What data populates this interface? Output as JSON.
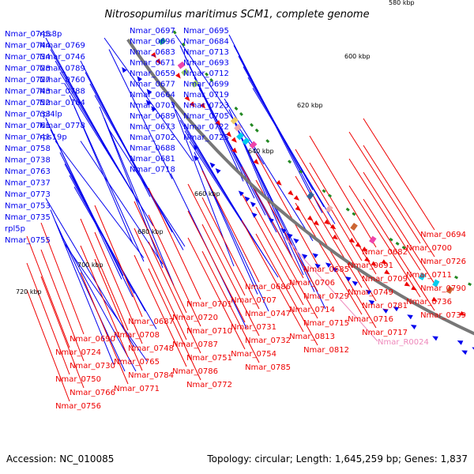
{
  "title": "Nitrosopumilus maritimus SCM1, complete genome",
  "footer": {
    "accession": "Accession: NC_010085",
    "summary": "Topology: circular; Length: 1,645,259 bp; Genes: 1,837"
  },
  "colors": {
    "forward": "#0000ee",
    "reverse": "#ee0000",
    "rna": "#ee88bb",
    "backbone": "#777777",
    "gc_skew": "#228822"
  },
  "ticks": [
    "580 kbp",
    "600 kbp",
    "620 kbp",
    "640 kbp",
    "660 kbp",
    "680 kbp",
    "700 kbp",
    "720 kbp"
  ],
  "forward_genes": [
    "Nmar_0745",
    "Nmar_0744",
    "Nmar_0734",
    "Nmar_0728",
    "Nmar_0727",
    "Nmar_0743",
    "Nmar_0752",
    "Nmar_0733",
    "Nmar_0761",
    "Nmar_0741",
    "Nmar_0758",
    "Nmar_0738",
    "Nmar_0763",
    "Nmar_0737",
    "Nmar_0773",
    "Nmar_0753",
    "Nmar_0735",
    "rpl5p",
    "Nmar_0755",
    "rps8p",
    "Nmar_0769",
    "Nmar_0746",
    "Nmar_0789",
    "Nmar_0760",
    "Nmar_0788",
    "Nmar_0764",
    "rpl4lp",
    "Nmar_0778",
    "rps19p",
    "Nmar_0697",
    "Nmar_0696",
    "Nmar_0683",
    "Nmar_0671",
    "Nmar_0659",
    "Nmar_0677",
    "Nmar_0664",
    "Nmar_0703",
    "Nmar_0689",
    "Nmar_0673",
    "Nmar_0702",
    "Nmar_0688",
    "Nmar_0681",
    "Nmar_0718",
    "Nmar_0695",
    "Nmar_0684",
    "Nmar_0713",
    "Nmar_0693",
    "Nmar_0712",
    "Nmar_0699",
    "Nmar_0719",
    "Nmar_0723",
    "Nmar_0705",
    "Nmar_0722",
    "Nmar_0725"
  ],
  "reverse_genes": [
    "Nmar_0694",
    "Nmar_0682",
    "Nmar_0685",
    "Nmar_0686",
    "Nmar_0701",
    "Nmar_0687",
    "Nmar_0690",
    "Nmar_0700",
    "Nmar_0691",
    "Nmar_0706",
    "Nmar_0707",
    "Nmar_0720",
    "Nmar_0708",
    "Nmar_0724",
    "Nmar_0726",
    "Nmar_0709",
    "Nmar_0729",
    "Nmar_0747",
    "Nmar_0710",
    "Nmar_0748",
    "Nmar_0730",
    "Nmar_0711",
    "Nmar_0749",
    "Nmar_0714",
    "Nmar_0731",
    "Nmar_0787",
    "Nmar_0765",
    "Nmar_0750",
    "Nmar_0790",
    "Nmar_0781",
    "Nmar_0715",
    "Nmar_0732",
    "Nmar_0751",
    "Nmar_0784",
    "Nmar_0766",
    "Nmar_0736",
    "Nmar_0716",
    "Nmar_0813",
    "Nmar_0754",
    "Nmar_0786",
    "Nmar_0771",
    "Nmar_0756",
    "Nmar_0739",
    "Nmar_0717",
    "Nmar_0812",
    "Nmar_0785",
    "Nmar_0772"
  ],
  "rna_genes": [
    "Nmar_R0024"
  ]
}
